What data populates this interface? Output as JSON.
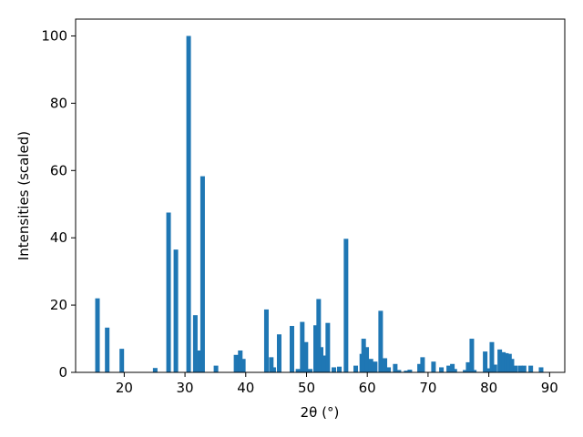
{
  "chart_data": {
    "type": "bar",
    "xlabel": "2θ (°)",
    "ylabel": "Intensities (scaled)",
    "xlim": [
      12,
      92.5
    ],
    "ylim": [
      0,
      105
    ],
    "xticks": [
      20,
      30,
      40,
      50,
      60,
      70,
      80,
      90
    ],
    "yticks": [
      0,
      20,
      40,
      60,
      80,
      100
    ],
    "grid": false,
    "bar_color": "#1f77b4",
    "bar_width": 0.75,
    "series": [
      {
        "x": [
          15.6,
          17.2,
          19.6,
          25.1,
          27.3,
          28.5,
          30.6,
          31.7,
          32.4,
          32.9,
          35.1,
          38.4,
          39.1,
          39.6,
          43.4,
          44.2,
          44.6,
          45.5,
          47.6,
          48.6,
          49.3,
          49.9,
          50.6,
          51.5,
          52.0,
          52.4,
          52.8,
          53.5,
          54.5,
          55.4,
          56.5,
          58.1,
          59.1,
          59.4,
          59.9,
          60.6,
          61.3,
          62.2,
          62.9,
          63.5,
          64.6,
          65.2,
          66.4,
          67.0,
          68.6,
          69.1,
          70.9,
          72.2,
          73.4,
          74.0,
          74.4,
          76.1,
          76.6,
          77.2,
          77.6,
          79.4,
          80.0,
          80.5,
          81.0,
          81.8,
          82.4,
          82.9,
          83.4,
          83.8,
          84.4,
          85.2,
          85.8,
          86.9,
          88.6
        ],
        "values": [
          22,
          13.3,
          7,
          1.3,
          47.5,
          36.5,
          100,
          17,
          6.5,
          58.3,
          2,
          5.2,
          6.5,
          4,
          18.7,
          4.5,
          1.5,
          11.3,
          13.8,
          1,
          15,
          9,
          1,
          14,
          21.8,
          7.5,
          5,
          14.7,
          1.5,
          1.7,
          39.7,
          2,
          5.5,
          10,
          7.5,
          4,
          3.2,
          18.3,
          4.2,
          1.5,
          2.5,
          0.7,
          0.5,
          0.8,
          2.5,
          4.5,
          3.2,
          1.5,
          2,
          2.5,
          1,
          0.7,
          3,
          10,
          0.7,
          6.2,
          1.2,
          9,
          2.3,
          6.8,
          6,
          5.7,
          5.5,
          4,
          2,
          2,
          2,
          2,
          1.5
        ]
      }
    ]
  }
}
